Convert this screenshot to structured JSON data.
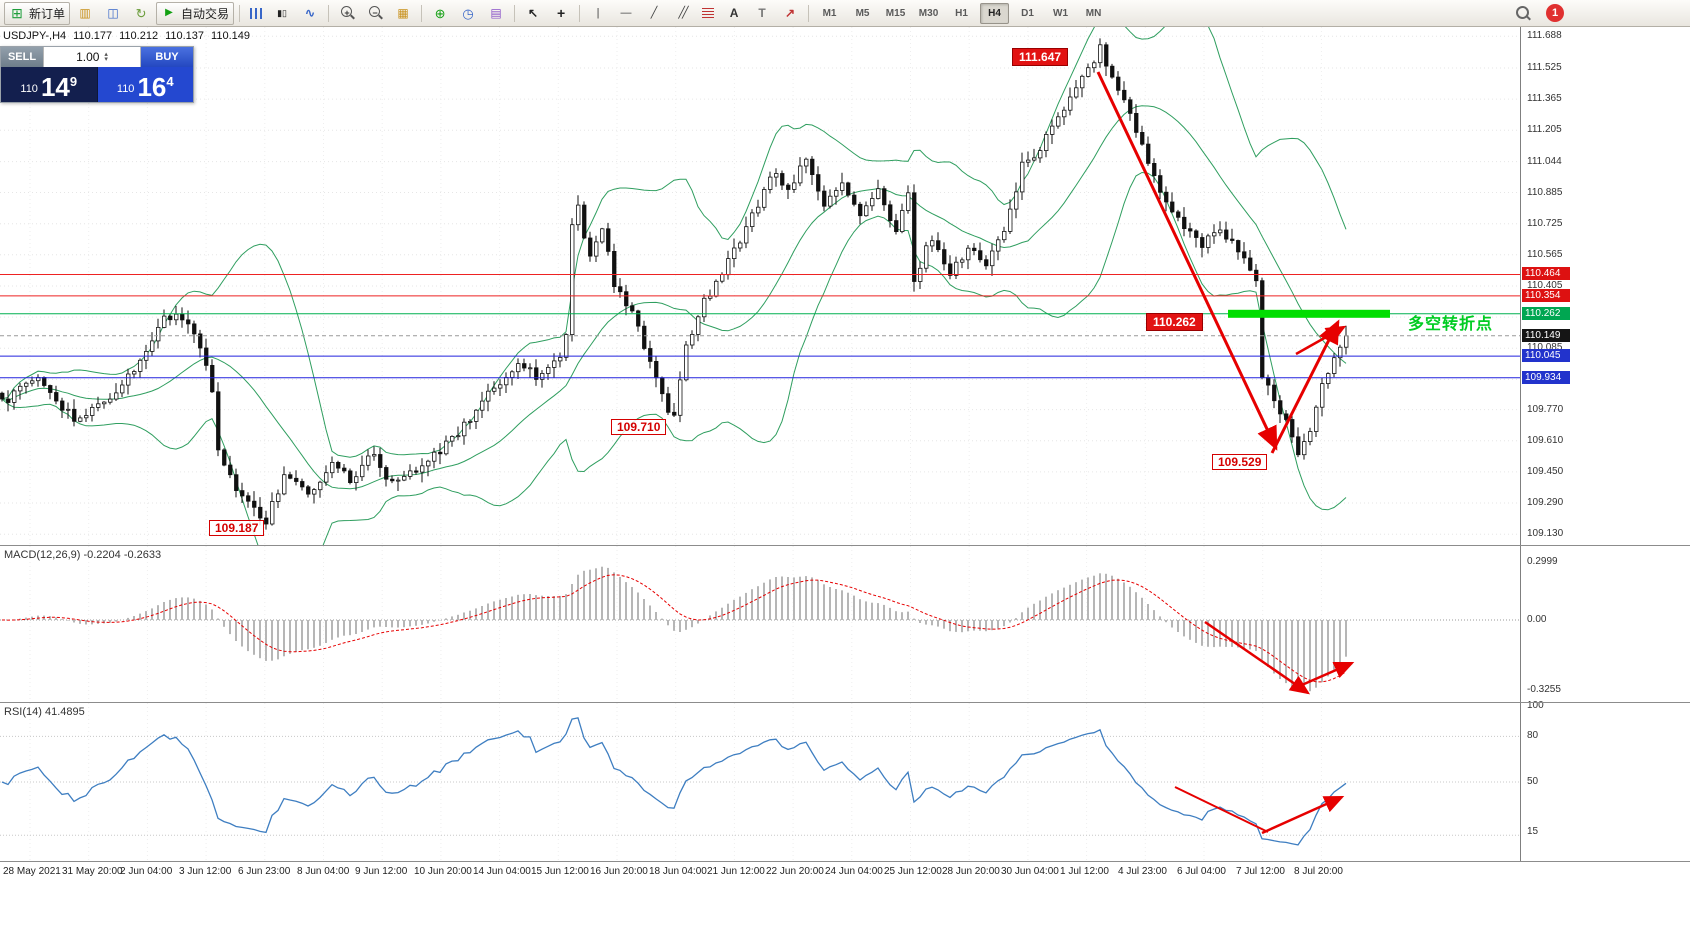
{
  "toolbar": {
    "new_order_label": "新订单",
    "auto_trading_label": "自动交易",
    "timeframes": [
      "M1",
      "M5",
      "M15",
      "M30",
      "H1",
      "H4",
      "D1",
      "W1",
      "MN"
    ],
    "active_timeframe": "H4",
    "notification_count": "1",
    "icon_glyphs": {
      "icon-new-order": "⊞",
      "icon-charts": "▥",
      "icon-profiles": "◫",
      "icon-refresh": "↻",
      "icon-play": "▶",
      "icon-candles": "▮▯",
      "icon-linechart": "∿",
      "icon-tiles": "▦",
      "icon-indicators": "⊕",
      "icon-periods": "◷",
      "icon-templates": "▤",
      "icon-cursor": "↖",
      "icon-crosshair": "+",
      "icon-vline": "|",
      "icon-hline": "—",
      "icon-trendline": "╱",
      "icon-channel": "╱╱",
      "icon-text": "A",
      "icon-label": "T",
      "icon-arrows": "↗",
      "icon-zoom-in": "+",
      "icon-zoom-out": "−",
      "icon-bars": "",
      "icon-fibo": ""
    },
    "items": [
      {
        "t": "btn",
        "name": "new-order-button",
        "icon": "icon-new-order",
        "label": "新订单"
      },
      {
        "t": "ibtn",
        "name": "charts-button",
        "icon": "icon-charts"
      },
      {
        "t": "ibtn",
        "name": "profiles-button",
        "icon": "icon-profiles"
      },
      {
        "t": "ibtn",
        "name": "refresh-button",
        "icon": "icon-refresh"
      },
      {
        "t": "btn",
        "name": "auto-trading-button",
        "icon": "icon-play",
        "label": "自动交易"
      },
      {
        "t": "sep"
      },
      {
        "t": "ibtn",
        "name": "bar-chart-type-button",
        "icon": "icon-bars"
      },
      {
        "t": "ibtn",
        "name": "candlestick-chart-type-button",
        "icon": "icon-candles"
      },
      {
        "t": "ibtn",
        "name": "line-chart-type-button",
        "icon": "icon-linechart"
      },
      {
        "t": "sep"
      },
      {
        "t": "ibtn",
        "name": "zoom-in-button",
        "icon": "icon-zoom-in"
      },
      {
        "t": "ibtn",
        "name": "zoom-out-button",
        "icon": "icon-zoom-out"
      },
      {
        "t": "ibtn",
        "name": "tile-windows-button",
        "icon": "icon-tiles"
      },
      {
        "t": "sep"
      },
      {
        "t": "ibtn",
        "name": "indicators-button",
        "icon": "icon-indicators"
      },
      {
        "t": "ibtn",
        "name": "periods-button",
        "icon": "icon-periods"
      },
      {
        "t": "ibtn",
        "name": "templates-button",
        "icon": "icon-templates"
      },
      {
        "t": "sep"
      },
      {
        "t": "ibtn",
        "name": "cursor-button",
        "icon": "icon-cursor"
      },
      {
        "t": "ibtn",
        "name": "crosshair-button",
        "icon": "icon-crosshair"
      },
      {
        "t": "sep"
      },
      {
        "t": "ibtn",
        "name": "vertical-line-button",
        "icon": "icon-vline"
      },
      {
        "t": "ibtn",
        "name": "horizontal-line-button",
        "icon": "icon-hline"
      },
      {
        "t": "ibtn",
        "name": "trendline-button",
        "icon": "icon-trendline"
      },
      {
        "t": "ibtn",
        "name": "channel-button",
        "icon": "icon-channel"
      },
      {
        "t": "ibtn",
        "name": "fibonacci-button",
        "icon": "icon-fibo"
      },
      {
        "t": "ibtn",
        "name": "text-button",
        "icon": "icon-text"
      },
      {
        "t": "ibtn",
        "name": "label-button",
        "icon": "icon-label"
      },
      {
        "t": "ibtn",
        "name": "arrows-button",
        "icon": "icon-arrows"
      },
      {
        "t": "sep"
      },
      {
        "t": "tf"
      }
    ]
  },
  "icons": {
    "spinner_up": "▴",
    "spinner_down": "▾"
  },
  "symbol_header": {
    "symbol": "USDJPY-,H4",
    "open": "110.177",
    "high": "110.212",
    "low": "110.137",
    "close": "110.149"
  },
  "trade_panel": {
    "sell_label": "SELL",
    "buy_label": "BUY",
    "volume": "1.00",
    "sell_price": {
      "prefix": "110",
      "big": "14",
      "sup": "9"
    },
    "buy_price": {
      "prefix": "110",
      "big": "16",
      "sup": "4"
    }
  },
  "price_axis": {
    "ticks": [
      "111.688",
      "111.525",
      "111.365",
      "111.205",
      "111.044",
      "110.885",
      "110.725",
      "110.565",
      "110.405",
      "110.245",
      "110.085",
      "109.925",
      "109.770",
      "109.610",
      "109.450",
      "109.290",
      "109.130"
    ],
    "badges": [
      {
        "label": "110.464",
        "price": 110.464,
        "bg": "#dd1111"
      },
      {
        "label": "110.354",
        "price": 110.354,
        "bg": "#dd1111"
      },
      {
        "label": "110.262",
        "price": 110.262,
        "bg": "#00a651"
      },
      {
        "label": "110.149",
        "price": 110.149,
        "bg": "#151515"
      },
      {
        "label": "110.045",
        "price": 110.045,
        "bg": "#2233cc"
      },
      {
        "label": "109.934",
        "price": 109.934,
        "bg": "#2233cc"
      }
    ]
  },
  "annotations": {
    "high_label": "111.647",
    "turning_price_label": "110.262",
    "turning_text": "多空转折点",
    "low_label_1": "109.710",
    "low_label_2": "109.529",
    "low_label_3": "109.187"
  },
  "hlines": [
    {
      "price": 110.464,
      "color": "#ee2222"
    },
    {
      "price": 110.354,
      "color": "#ee2222"
    },
    {
      "price": 110.262,
      "color": "#00b050"
    },
    {
      "price": 110.045,
      "color": "#2222dd"
    },
    {
      "price": 109.934,
      "color": "#2222dd"
    },
    {
      "price": 110.149,
      "color": "#999999",
      "dash": true
    }
  ],
  "macd_panel": {
    "label": "MACD(12,26,9) -0.2204 -0.2633",
    "scale_top": "0.2999",
    "scale_zero": "0.00",
    "scale_bottom": "-0.3255"
  },
  "rsi_panel": {
    "label": "RSI(14) 41.4895",
    "levels": [
      "100",
      "80",
      "50",
      "15"
    ]
  },
  "time_axis": [
    "28 May 2021",
    "31 May 20:00",
    "2 Jun 04:00",
    "3 Jun 12:00",
    "6 Jun 23:00",
    "8 Jun 04:00",
    "9 Jun 12:00",
    "10 Jun 20:00",
    "14 Jun 04:00",
    "15 Jun 12:00",
    "16 Jun 20:00",
    "18 Jun 04:00",
    "21 Jun 12:00",
    "22 Jun 20:00",
    "24 Jun 04:00",
    "25 Jun 12:00",
    "28 Jun 20:00",
    "30 Jun 04:00",
    "1 Jul 12:00",
    "4 Jul 23:00",
    "6 Jul 04:00",
    "7 Jul 12:00",
    "8 Jul 20:00"
  ],
  "chart_data": {
    "type": "candlestick",
    "symbol": "USDJPY",
    "timeframe": "H4",
    "title": "USDJPY-,H4",
    "ohlc_current": {
      "open": 110.177,
      "high": 110.212,
      "low": 110.137,
      "close": 110.149
    },
    "y_range": [
      109.1,
      111.72
    ],
    "key_prices": {
      "swing_high": 111.647,
      "turning_point": 110.262,
      "support_1": 109.71,
      "swing_low": 109.529,
      "major_low": 109.187,
      "resistance_1": 110.464,
      "resistance_2": 110.354,
      "support_blue_1": 110.045,
      "support_blue_2": 109.934
    },
    "indicators": {
      "bollinger": "20,2",
      "macd": "12,26,9",
      "rsi": "14"
    },
    "macd_values": {
      "main": -0.2204,
      "signal": -0.2633
    },
    "rsi_value": 41.4895,
    "candles_count": 225,
    "price_path": [
      [
        0,
        109.8
      ],
      [
        6,
        109.93
      ],
      [
        12,
        109.72
      ],
      [
        18,
        109.82
      ],
      [
        24,
        110.05
      ],
      [
        27,
        110.26
      ],
      [
        31,
        110.22
      ],
      [
        34,
        110.0
      ],
      [
        35,
        109.85
      ],
      [
        36,
        109.55
      ],
      [
        40,
        109.32
      ],
      [
        44,
        109.19
      ],
      [
        47,
        109.44
      ],
      [
        51,
        109.33
      ],
      [
        55,
        109.5
      ],
      [
        58,
        109.4
      ],
      [
        62,
        109.55
      ],
      [
        65,
        109.38
      ],
      [
        69,
        109.46
      ],
      [
        73,
        109.55
      ],
      [
        78,
        109.72
      ],
      [
        82,
        109.88
      ],
      [
        86,
        110.02
      ],
      [
        89,
        109.94
      ],
      [
        93,
        110.05
      ],
      [
        94,
        110.15
      ],
      [
        95,
        110.7
      ],
      [
        96,
        110.8
      ],
      [
        98,
        110.55
      ],
      [
        100,
        110.72
      ],
      [
        102,
        110.4
      ],
      [
        105,
        110.28
      ],
      [
        108,
        110.02
      ],
      [
        111,
        109.78
      ],
      [
        112,
        109.74
      ],
      [
        114,
        110.08
      ],
      [
        117,
        110.32
      ],
      [
        120,
        110.48
      ],
      [
        123,
        110.65
      ],
      [
        126,
        110.82
      ],
      [
        129,
        111.0
      ],
      [
        131,
        110.88
      ],
      [
        134,
        111.06
      ],
      [
        137,
        110.84
      ],
      [
        140,
        110.92
      ],
      [
        143,
        110.78
      ],
      [
        146,
        110.88
      ],
      [
        149,
        110.68
      ],
      [
        151,
        110.9
      ],
      [
        152,
        110.45
      ],
      [
        155,
        110.66
      ],
      [
        158,
        110.48
      ],
      [
        161,
        110.6
      ],
      [
        164,
        110.52
      ],
      [
        167,
        110.68
      ],
      [
        170,
        111.02
      ],
      [
        173,
        111.12
      ],
      [
        176,
        111.28
      ],
      [
        179,
        111.42
      ],
      [
        181,
        111.52
      ],
      [
        183,
        111.62
      ],
      [
        185,
        111.48
      ],
      [
        188,
        111.28
      ],
      [
        191,
        111.05
      ],
      [
        194,
        110.82
      ],
      [
        197,
        110.72
      ],
      [
        200,
        110.62
      ],
      [
        203,
        110.7
      ],
      [
        206,
        110.58
      ],
      [
        208,
        110.5
      ],
      [
        209,
        110.45
      ],
      [
        210,
        109.95
      ],
      [
        212,
        109.8
      ],
      [
        214,
        109.7
      ],
      [
        216,
        109.56
      ],
      [
        218,
        109.68
      ],
      [
        220,
        109.88
      ],
      [
        222,
        110.04
      ],
      [
        224,
        110.149
      ]
    ]
  }
}
